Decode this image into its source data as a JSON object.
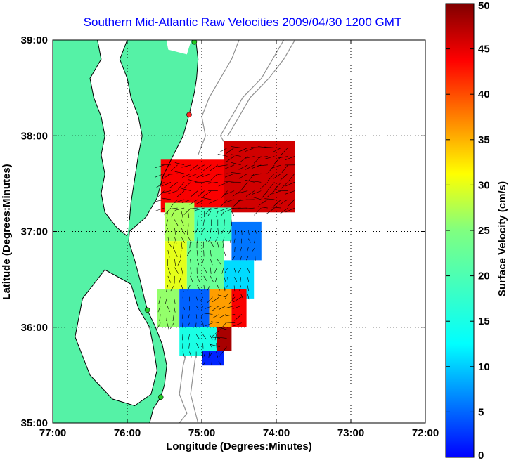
{
  "title": "Southern Mid-Atlantic Raw Velocities 2009/04/30 1200 GMT",
  "xaxis": {
    "label": "Longitude (Degrees:Minutes)",
    "ticks": [
      {
        "value": -77,
        "label": "77:00"
      },
      {
        "value": -76,
        "label": "76:00"
      },
      {
        "value": -75,
        "label": "75:00"
      },
      {
        "value": -74,
        "label": "74:00"
      },
      {
        "value": -73,
        "label": "73:00"
      },
      {
        "value": -72,
        "label": "72:00"
      }
    ],
    "range": [
      -77,
      -72
    ]
  },
  "yaxis": {
    "label": "Latitude (Degrees:Minutes)",
    "ticks": [
      {
        "value": 35,
        "label": "35:00"
      },
      {
        "value": 36,
        "label": "36:00"
      },
      {
        "value": 37,
        "label": "37:00"
      },
      {
        "value": 38,
        "label": "38:00"
      },
      {
        "value": 39,
        "label": "39:00"
      }
    ],
    "range": [
      35,
      39
    ]
  },
  "colorbar": {
    "label": "Surface Velocity (cm/s)",
    "range": [
      0,
      50
    ],
    "ticks": [
      {
        "value": 0,
        "label": "0"
      },
      {
        "value": 5,
        "label": "5"
      },
      {
        "value": 10,
        "label": "10"
      },
      {
        "value": 15,
        "label": "15"
      },
      {
        "value": 20,
        "label": "20"
      },
      {
        "value": 25,
        "label": "25"
      },
      {
        "value": 30,
        "label": "30"
      },
      {
        "value": 35,
        "label": "35"
      },
      {
        "value": 40,
        "label": "40"
      },
      {
        "value": 45,
        "label": "45"
      },
      {
        "value": 50,
        "label": "50"
      }
    ],
    "colormap": "jet"
  },
  "colors": {
    "land": "#55f2a6",
    "coast": "#000000",
    "bathymetry": "#909090",
    "grid": "#000000",
    "title": "#0000ff"
  },
  "grid": "dotted",
  "stations": [
    {
      "lon": -75.1,
      "lat": 38.98,
      "color": "#22cc22"
    },
    {
      "lon": -75.17,
      "lat": 38.22,
      "color": "#ff2222"
    },
    {
      "lon": -75.73,
      "lat": 36.18,
      "color": "#22cc22"
    },
    {
      "lon": -75.55,
      "lat": 35.27,
      "color": "#22cc22"
    }
  ],
  "coast_lines": {
    "outer_coast": [
      [
        -75.08,
        39.0
      ],
      [
        -75.05,
        38.8
      ],
      [
        -75.07,
        38.6
      ],
      [
        -75.1,
        38.45
      ],
      [
        -75.17,
        38.22
      ],
      [
        -75.25,
        38.0
      ],
      [
        -75.38,
        37.8
      ],
      [
        -75.52,
        37.58
      ],
      [
        -75.6,
        37.35
      ],
      [
        -75.75,
        37.15
      ],
      [
        -75.97,
        37.0
      ],
      [
        -75.98,
        36.9
      ],
      [
        -75.9,
        36.7
      ],
      [
        -75.83,
        36.5
      ],
      [
        -75.77,
        36.3
      ],
      [
        -75.73,
        36.18
      ],
      [
        -75.62,
        36.0
      ],
      [
        -75.53,
        35.82
      ],
      [
        -75.47,
        35.6
      ],
      [
        -75.5,
        35.4
      ],
      [
        -75.55,
        35.27
      ],
      [
        -75.65,
        35.15
      ],
      [
        -75.7,
        35.0
      ]
    ],
    "bay_west": [
      [
        -76.4,
        39.0
      ],
      [
        -76.35,
        38.8
      ],
      [
        -76.5,
        38.6
      ],
      [
        -76.45,
        38.4
      ],
      [
        -76.35,
        38.2
      ],
      [
        -76.3,
        38.0
      ],
      [
        -76.35,
        37.8
      ],
      [
        -76.3,
        37.6
      ],
      [
        -76.35,
        37.4
      ],
      [
        -76.3,
        37.2
      ],
      [
        -76.15,
        37.05
      ],
      [
        -76.0,
        36.95
      ]
    ],
    "bay_east": [
      [
        -76.0,
        39.0
      ],
      [
        -76.1,
        38.8
      ],
      [
        -76.0,
        38.6
      ],
      [
        -75.95,
        38.4
      ],
      [
        -75.85,
        38.2
      ],
      [
        -75.8,
        38.0
      ],
      [
        -75.85,
        37.8
      ],
      [
        -75.9,
        37.55
      ],
      [
        -75.95,
        37.3
      ],
      [
        -75.97,
        37.12
      ]
    ],
    "sound": [
      [
        -76.3,
        36.6
      ],
      [
        -75.95,
        36.45
      ],
      [
        -75.85,
        36.2
      ],
      [
        -75.7,
        36.0
      ],
      [
        -75.65,
        35.8
      ],
      [
        -75.6,
        35.55
      ],
      [
        -75.68,
        35.3
      ],
      [
        -75.9,
        35.18
      ],
      [
        -76.2,
        35.25
      ],
      [
        -76.5,
        35.5
      ],
      [
        -76.7,
        35.9
      ],
      [
        -76.6,
        36.3
      ]
    ]
  },
  "bathymetry_lines": [
    [
      [
        -74.5,
        39.0
      ],
      [
        -74.6,
        38.8
      ],
      [
        -74.75,
        38.6
      ],
      [
        -74.9,
        38.4
      ],
      [
        -75.0,
        38.2
      ],
      [
        -74.95,
        38.0
      ],
      [
        -75.05,
        37.8
      ]
    ],
    [
      [
        -73.9,
        39.0
      ],
      [
        -74.05,
        38.8
      ],
      [
        -74.2,
        38.6
      ],
      [
        -74.45,
        38.4
      ],
      [
        -74.6,
        38.2
      ],
      [
        -74.75,
        38.0
      ],
      [
        -74.6,
        37.8
      ]
    ],
    [
      [
        -73.75,
        39.0
      ],
      [
        -73.9,
        38.8
      ],
      [
        -74.1,
        38.6
      ],
      [
        -74.35,
        38.4
      ],
      [
        -74.5,
        38.2
      ],
      [
        -74.65,
        38.0
      ]
    ],
    [
      [
        -75.15,
        35.9
      ],
      [
        -75.25,
        35.6
      ],
      [
        -75.3,
        35.3
      ],
      [
        -75.2,
        35.1
      ],
      [
        -75.3,
        35.0
      ]
    ],
    [
      [
        -75.05,
        35.9
      ],
      [
        -75.1,
        35.6
      ],
      [
        -75.15,
        35.3
      ],
      [
        -75.05,
        35.0
      ]
    ]
  ],
  "velocity_field": {
    "regions": [
      {
        "lon": [
          -75.55,
          -74.7
        ],
        "lat": [
          37.2,
          37.75
        ],
        "speed": 44
      },
      {
        "lon": [
          -74.7,
          -73.75
        ],
        "lat": [
          37.2,
          37.95
        ],
        "speed": 46
      },
      {
        "lon": [
          -75.5,
          -75.1
        ],
        "lat": [
          36.9,
          37.3
        ],
        "speed": 27
      },
      {
        "lon": [
          -75.1,
          -74.6
        ],
        "lat": [
          36.9,
          37.25
        ],
        "speed": 22
      },
      {
        "lon": [
          -74.6,
          -74.2
        ],
        "lat": [
          36.7,
          37.1
        ],
        "speed": 12
      },
      {
        "lon": [
          -75.5,
          -75.2
        ],
        "lat": [
          36.4,
          36.9
        ],
        "speed": 30
      },
      {
        "lon": [
          -75.2,
          -74.7
        ],
        "lat": [
          36.4,
          36.9
        ],
        "speed": 24
      },
      {
        "lon": [
          -74.7,
          -74.3
        ],
        "lat": [
          36.3,
          36.7
        ],
        "speed": 17
      },
      {
        "lon": [
          -75.6,
          -75.3
        ],
        "lat": [
          36.0,
          36.4
        ],
        "speed": 26
      },
      {
        "lon": [
          -75.3,
          -74.9
        ],
        "lat": [
          36.0,
          36.4
        ],
        "speed": 11
      },
      {
        "lon": [
          -74.9,
          -74.6
        ],
        "lat": [
          36.0,
          36.4
        ],
        "speed": 36
      },
      {
        "lon": [
          -74.6,
          -74.4
        ],
        "lat": [
          36.0,
          36.4
        ],
        "speed": 44
      },
      {
        "lon": [
          -75.3,
          -74.8
        ],
        "lat": [
          35.7,
          36.0
        ],
        "speed": 20
      },
      {
        "lon": [
          -74.8,
          -74.6
        ],
        "lat": [
          35.75,
          36.0
        ],
        "speed": 48
      },
      {
        "lon": [
          -75.0,
          -74.7
        ],
        "lat": [
          35.6,
          35.75
        ],
        "speed": 8
      }
    ]
  }
}
